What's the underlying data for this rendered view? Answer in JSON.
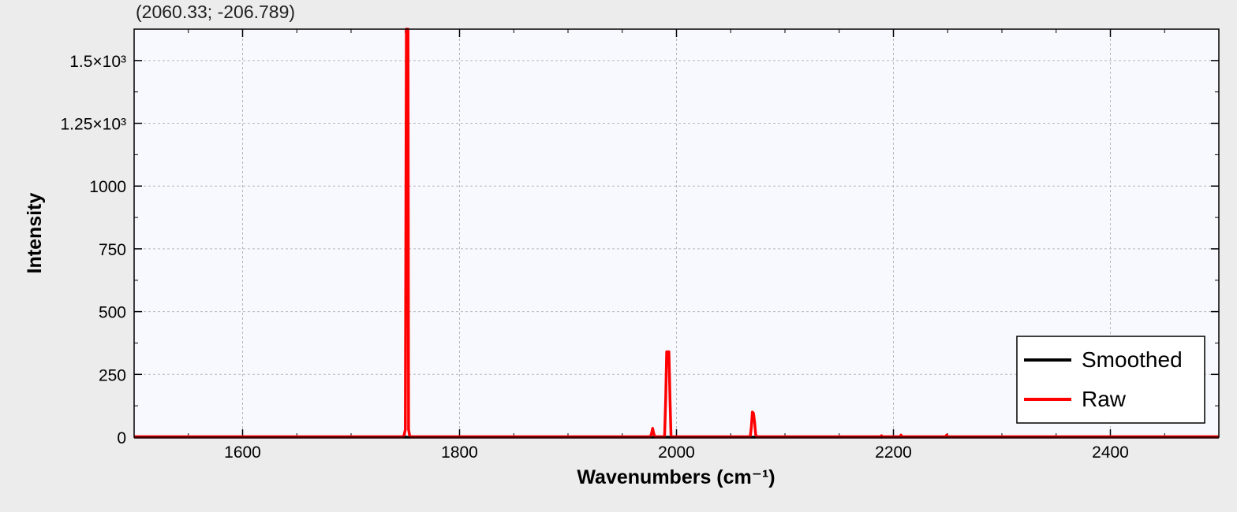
{
  "coord_readout": "(2060.33; -206.789)",
  "chart_data": {
    "type": "line",
    "xlabel": "Wavenumbers (cm⁻¹)",
    "ylabel": "Intensity",
    "xlim": [
      1500,
      2500
    ],
    "ylim": [
      0,
      1625
    ],
    "x_ticks": [
      {
        "value": 1600,
        "label": "1600"
      },
      {
        "value": 1800,
        "label": "1800"
      },
      {
        "value": 2000,
        "label": "2000"
      },
      {
        "value": 2200,
        "label": "2200"
      },
      {
        "value": 2400,
        "label": "2400"
      }
    ],
    "y_ticks": [
      {
        "value": 0,
        "label": "0"
      },
      {
        "value": 250,
        "label": "250"
      },
      {
        "value": 500,
        "label": "500"
      },
      {
        "value": 750,
        "label": "750"
      },
      {
        "value": 1000,
        "label": "1000"
      },
      {
        "value": 1250,
        "label": "1.25×10³"
      },
      {
        "value": 1500,
        "label": "1.5×10³"
      }
    ],
    "grid": true,
    "legend_position": "bottom-right",
    "series": [
      {
        "name": "Smoothed",
        "color": "#000000",
        "x": [
          1500,
          2500
        ],
        "y": [
          0,
          0
        ]
      },
      {
        "name": "Raw",
        "color": "#ff0000",
        "x": [
          1500,
          1748,
          1749,
          1750,
          1751,
          1751.5,
          1752,
          1752.5,
          1753,
          1754,
          1755,
          1976,
          1977,
          1978,
          1979,
          1980,
          1989,
          1990,
          1991,
          1992,
          1993,
          1994,
          1995,
          2068,
          2069,
          2070,
          2071,
          2072,
          2073,
          2074,
          2188,
          2189,
          2190,
          2206,
          2207,
          2208,
          2248,
          2249,
          2250,
          2500
        ],
        "y": [
          2,
          2,
          10,
          30,
          1625,
          1625,
          1625,
          1625,
          30,
          5,
          2,
          2,
          15,
          35,
          15,
          2,
          2,
          150,
          340,
          340,
          340,
          150,
          2,
          2,
          40,
          100,
          95,
          60,
          10,
          2,
          2,
          6,
          2,
          2,
          8,
          2,
          2,
          8,
          2,
          2
        ]
      }
    ]
  }
}
